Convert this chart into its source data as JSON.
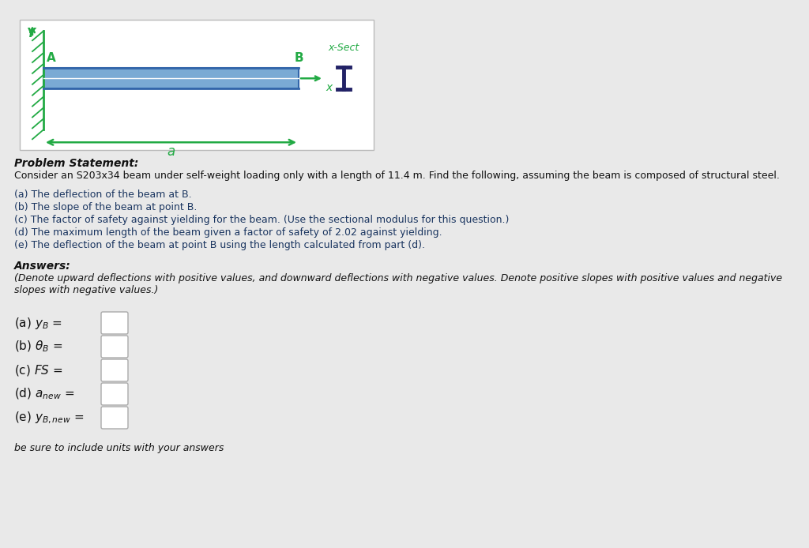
{
  "bg_color": "#e9e9e9",
  "diagram_bg": "#ffffff",
  "beam_color": "#6699cc",
  "beam_outline": "#3366aa",
  "beam_fill": "#7aaad4",
  "hatch_color": "#22aa44",
  "text_color_dark": "#1a1a2e",
  "text_color_blue": "#1a3a6b",
  "text_color_italic_blue": "#2244aa",
  "problem_title": "Problem Statement:",
  "problem_text": "Consider an S203x34 beam under self-weight loading only with a length of 11.4 m. Find the following, assuming the beam is composed of structural steel.",
  "items": [
    "(a) The deflection of the beam at B.",
    "(b) The slope of the beam at point B.",
    "(c) The factor of safety against yielding for the beam. (Use the sectional modulus for this question.)",
    "(d) The maximum length of the beam given a factor of safety of 2.02 against yielding.",
    "(e) The deflection of the beam at point B using the length calculated from part (d)."
  ],
  "answers_title": "Answers:",
  "note_line1": "(Denote upward deflections with positive values, and downward deflections with negative values. Denote positive slopes with positive values and negative",
  "note_line2": "slopes with negative values.)",
  "footer": "be sure to include units with your answers"
}
